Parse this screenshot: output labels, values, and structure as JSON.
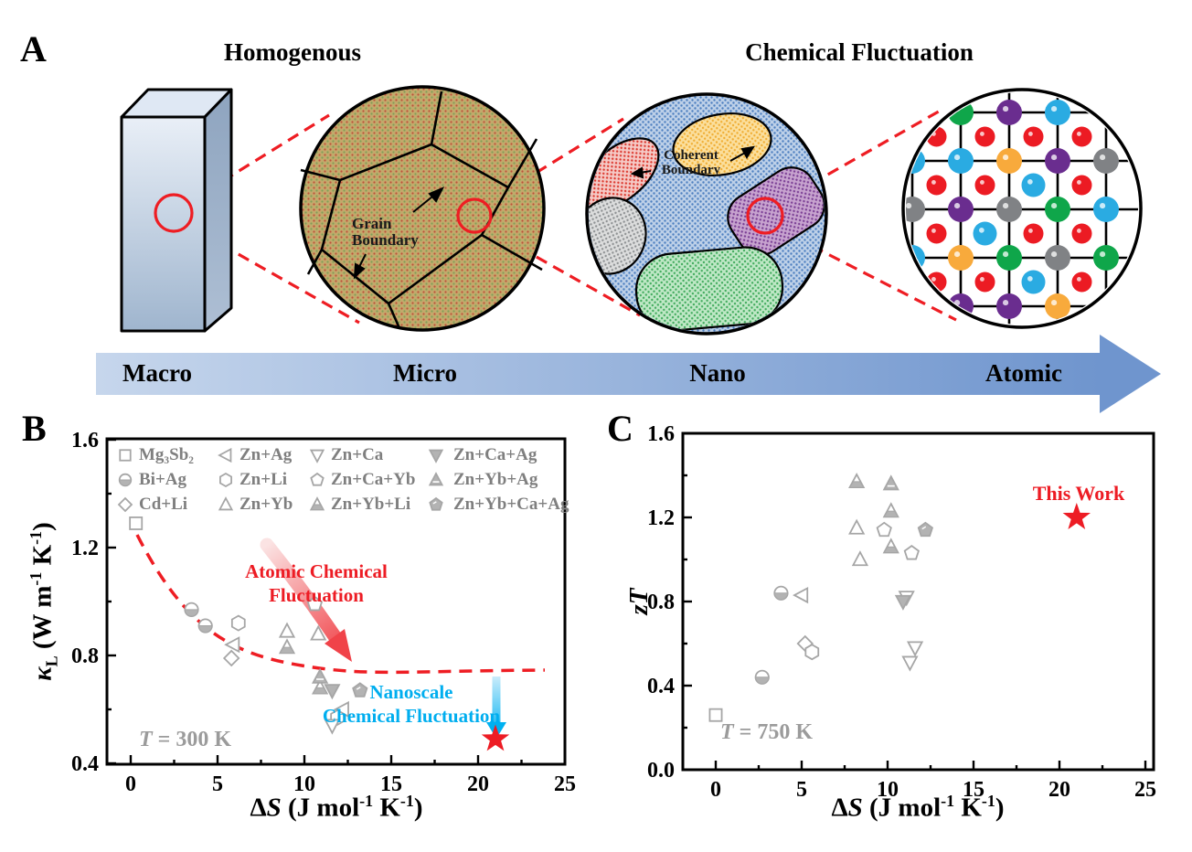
{
  "colors": {
    "accent_red": "#ed1c24",
    "accent_cyan": "#00aeef",
    "marker_gray": "#a6a6a6",
    "annotation_gray": "#9b9b9b",
    "arrow_blue_light": "#c4d4ea",
    "arrow_blue_dark": "#6f95ce"
  },
  "panelA": {
    "label": "A",
    "title_left": "Homogenous",
    "title_right": "Chemical Fluctuation",
    "scale_labels": [
      "Macro",
      "Micro",
      "Nano",
      "Atomic"
    ],
    "grain_boundary": [
      "Grain",
      "Boundary"
    ],
    "coherent_boundary": [
      "Coherent",
      "Boundary"
    ],
    "atom_colors": {
      "red": "#ec1b23",
      "green": "#0fa64a",
      "purple": "#6a2d8f",
      "cyan": "#2aabe2",
      "orange": "#f8aa3c",
      "gray": "#808285"
    },
    "lattice": {
      "node_rows": [
        [
          "",
          "green",
          "purple",
          "cyan",
          ""
        ],
        [
          "cyan",
          "cyan",
          "orange",
          "purple",
          "gray"
        ],
        [
          "gray",
          "purple",
          "gray",
          "green",
          "cyan"
        ],
        [
          "cyan",
          "orange",
          "green",
          "gray",
          "green"
        ],
        [
          "",
          "purple",
          "purple",
          "orange",
          ""
        ]
      ],
      "center_rows": [
        [
          "red",
          "red",
          "red",
          "red"
        ],
        [
          "red",
          "red",
          "cyan",
          "red"
        ],
        [
          "red",
          "cyan",
          "red",
          "red"
        ],
        [
          "red",
          "red",
          "cyan",
          "red"
        ]
      ]
    }
  },
  "legend": [
    {
      "marker": "square",
      "label": "Mg₃Sb₂"
    },
    {
      "marker": "lefttri",
      "label": "Zn+Ag"
    },
    {
      "marker": "downtri",
      "label": "Zn+Ca"
    },
    {
      "marker": "filleddowntri",
      "label": "Zn+Ca+Ag"
    },
    {
      "marker": "halfcircle",
      "label": "Bi+Ag"
    },
    {
      "marker": "hexagon",
      "label": "Zn+Li"
    },
    {
      "marker": "pentagon",
      "label": "Zn+Ca+Yb"
    },
    {
      "marker": "filledtri",
      "label": "Zn+Yb+Ag"
    },
    {
      "marker": "diamond",
      "label": "Cd+Li"
    },
    {
      "marker": "uptri",
      "label": "Zn+Yb"
    },
    {
      "marker": "halftri",
      "label": "Zn+Yb+Li"
    },
    {
      "marker": "filledpentagon",
      "label": "Zn+Yb+Ca+Ag"
    }
  ],
  "chart_data": [
    {
      "panel_label": "B",
      "type": "scatter",
      "title": "",
      "xlabel": "ΔS (J mol-1 K-1)",
      "ylabel": "κL (W m-1 K-1)",
      "xlabel_parts": [
        {
          "t": "Δ"
        },
        {
          "t": "S",
          "i": true
        },
        {
          "t": " (J mol"
        },
        {
          "t": "-1",
          "sup": true
        },
        {
          "t": " K"
        },
        {
          "t": "-1",
          "sup": true
        },
        {
          "t": ")"
        }
      ],
      "ylabel_parts": [
        {
          "t": "κ",
          "i": true
        },
        {
          "t": "L",
          "sub": true
        },
        {
          "t": " (W m"
        },
        {
          "t": "-1",
          "sup": true
        },
        {
          "t": " K"
        },
        {
          "t": "-1",
          "sup": true
        },
        {
          "t": ")"
        }
      ],
      "xlim": [
        -1.4,
        25
      ],
      "ylim": [
        0.4,
        1.6
      ],
      "xticks": [
        0,
        5,
        10,
        15,
        20,
        25
      ],
      "xtick_labels": [
        "0",
        "5",
        "10",
        "15",
        "20",
        "25"
      ],
      "yticks": [
        0.4,
        0.8,
        1.2,
        1.6
      ],
      "ytick_labels": [
        "0.4",
        "0.8",
        "1.2",
        "1.6"
      ],
      "xminor": [
        2.5,
        7.5,
        12.5,
        17.5,
        22.5
      ],
      "yminor": [
        0.6,
        1.0,
        1.4
      ],
      "grid": false,
      "legend_position": "top-inside",
      "annotations": {
        "atomic": [
          "Atomic Chemical",
          "Fluctuation"
        ],
        "nano": [
          "Nanoscale",
          "Chemical Fluctuation"
        ],
        "temp_parts": [
          {
            "t": "T",
            "i": true
          },
          {
            "t": " = 300 K"
          }
        ]
      },
      "series": [
        {
          "name": "Mg3Sb2",
          "marker": "square",
          "points": [
            [
              0.3,
              1.29
            ]
          ]
        },
        {
          "name": "Bi+Ag",
          "marker": "halfcircle",
          "points": [
            [
              3.5,
              0.97
            ],
            [
              4.3,
              0.91
            ]
          ]
        },
        {
          "name": "Cd+Li",
          "marker": "diamond",
          "points": [
            [
              5.8,
              0.79
            ]
          ]
        },
        {
          "name": "Zn+Ag",
          "marker": "lefttri",
          "points": [
            [
              5.9,
              0.84
            ],
            [
              12.2,
              0.6
            ]
          ]
        },
        {
          "name": "Zn+Li",
          "marker": "hexagon",
          "points": [
            [
              6.2,
              0.92
            ],
            [
              11.9,
              0.57
            ]
          ]
        },
        {
          "name": "Zn+Yb",
          "marker": "uptri",
          "points": [
            [
              9.0,
              0.89
            ],
            [
              10.8,
              0.88
            ]
          ]
        },
        {
          "name": "Zn+Ca",
          "marker": "downtri",
          "points": [
            [
              11.6,
              0.54
            ]
          ]
        },
        {
          "name": "Zn+Ca+Yb",
          "marker": "pentagon",
          "points": [
            [
              10.6,
              0.99
            ]
          ]
        },
        {
          "name": "Zn+Yb+Li",
          "marker": "halftri",
          "points": [
            [
              9.0,
              0.83
            ],
            [
              10.9,
              0.68
            ]
          ]
        },
        {
          "name": "Zn+Yb+Ag",
          "marker": "filledtri",
          "points": [
            [
              10.9,
              0.72
            ]
          ]
        },
        {
          "name": "Zn+Ca+Ag",
          "marker": "filleddowntri",
          "points": [
            [
              11.6,
              0.67
            ]
          ]
        },
        {
          "name": "Zn+Yb+Ca+Ag",
          "marker": "filledpentagon",
          "points": [
            [
              13.2,
              0.67
            ]
          ]
        }
      ],
      "star": {
        "x": 21,
        "y": 0.49
      }
    },
    {
      "panel_label": "C",
      "type": "scatter",
      "title": "",
      "xlabel": "ΔS (J mol-1 K-1)",
      "ylabel": "zT",
      "xlabel_parts": [
        {
          "t": "Δ"
        },
        {
          "t": "S",
          "i": true
        },
        {
          "t": " (J mol"
        },
        {
          "t": "-1",
          "sup": true
        },
        {
          "t": " K"
        },
        {
          "t": "-1",
          "sup": true
        },
        {
          "t": ")"
        }
      ],
      "ylabel_parts": [
        {
          "t": "zT",
          "i": true
        }
      ],
      "xlim": [
        -1.9,
        25.5
      ],
      "ylim": [
        0.0,
        1.6
      ],
      "xticks": [
        0,
        5,
        10,
        15,
        20,
        25
      ],
      "xtick_labels": [
        "0",
        "5",
        "10",
        "15",
        "20",
        "25"
      ],
      "yticks": [
        0.0,
        0.4,
        0.8,
        1.2,
        1.6
      ],
      "ytick_labels": [
        "0.0",
        "0.4",
        "0.8",
        "1.2",
        "1.6"
      ],
      "xminor": [
        2.5,
        7.5,
        12.5,
        17.5,
        22.5
      ],
      "yminor": [
        0.2,
        0.6,
        1.0,
        1.4
      ],
      "grid": false,
      "legend_position": "none",
      "annotations": {
        "this_work": "This Work",
        "temp_parts": [
          {
            "t": "T",
            "i": true
          },
          {
            "t": " = 750 K"
          }
        ]
      },
      "series": [
        {
          "name": "Mg3Sb2",
          "marker": "square",
          "points": [
            [
              0,
              0.26
            ]
          ]
        },
        {
          "name": "Bi+Ag",
          "marker": "halfcircle",
          "points": [
            [
              2.7,
              0.44
            ],
            [
              3.8,
              0.84
            ]
          ]
        },
        {
          "name": "Cd+Li",
          "marker": "diamond",
          "points": [
            [
              5.2,
              0.6
            ]
          ]
        },
        {
          "name": "Zn+Ag",
          "marker": "lefttri",
          "points": [
            [
              5.0,
              0.83
            ]
          ]
        },
        {
          "name": "Zn+Li",
          "marker": "hexagon",
          "points": [
            [
              5.6,
              0.56
            ]
          ]
        },
        {
          "name": "Zn+Yb",
          "marker": "uptri",
          "points": [
            [
              8.2,
              1.15
            ],
            [
              8.4,
              1.0
            ]
          ]
        },
        {
          "name": "Zn+Ca",
          "marker": "downtri",
          "points": [
            [
              11.1,
              0.82
            ],
            [
              11.6,
              0.58
            ],
            [
              11.3,
              0.51
            ]
          ]
        },
        {
          "name": "Zn+Ca+Yb",
          "marker": "pentagon",
          "points": [
            [
              9.8,
              1.14
            ],
            [
              11.4,
              1.03
            ]
          ]
        },
        {
          "name": "Zn+Yb+Li",
          "marker": "halftri",
          "points": [
            [
              8.2,
              1.37
            ],
            [
              10.2,
              1.23
            ],
            [
              10.2,
              1.06
            ]
          ]
        },
        {
          "name": "Zn+Yb+Ag",
          "marker": "filledtri",
          "points": [
            [
              10.2,
              1.36
            ]
          ]
        },
        {
          "name": "Zn+Ca+Ag",
          "marker": "filleddowntri",
          "points": [
            [
              10.9,
              0.8
            ]
          ]
        },
        {
          "name": "Zn+Yb+Ca+Ag",
          "marker": "filledpentagon",
          "points": [
            [
              12.2,
              1.14
            ]
          ]
        }
      ],
      "star": {
        "x": 21,
        "y": 1.2
      }
    }
  ]
}
